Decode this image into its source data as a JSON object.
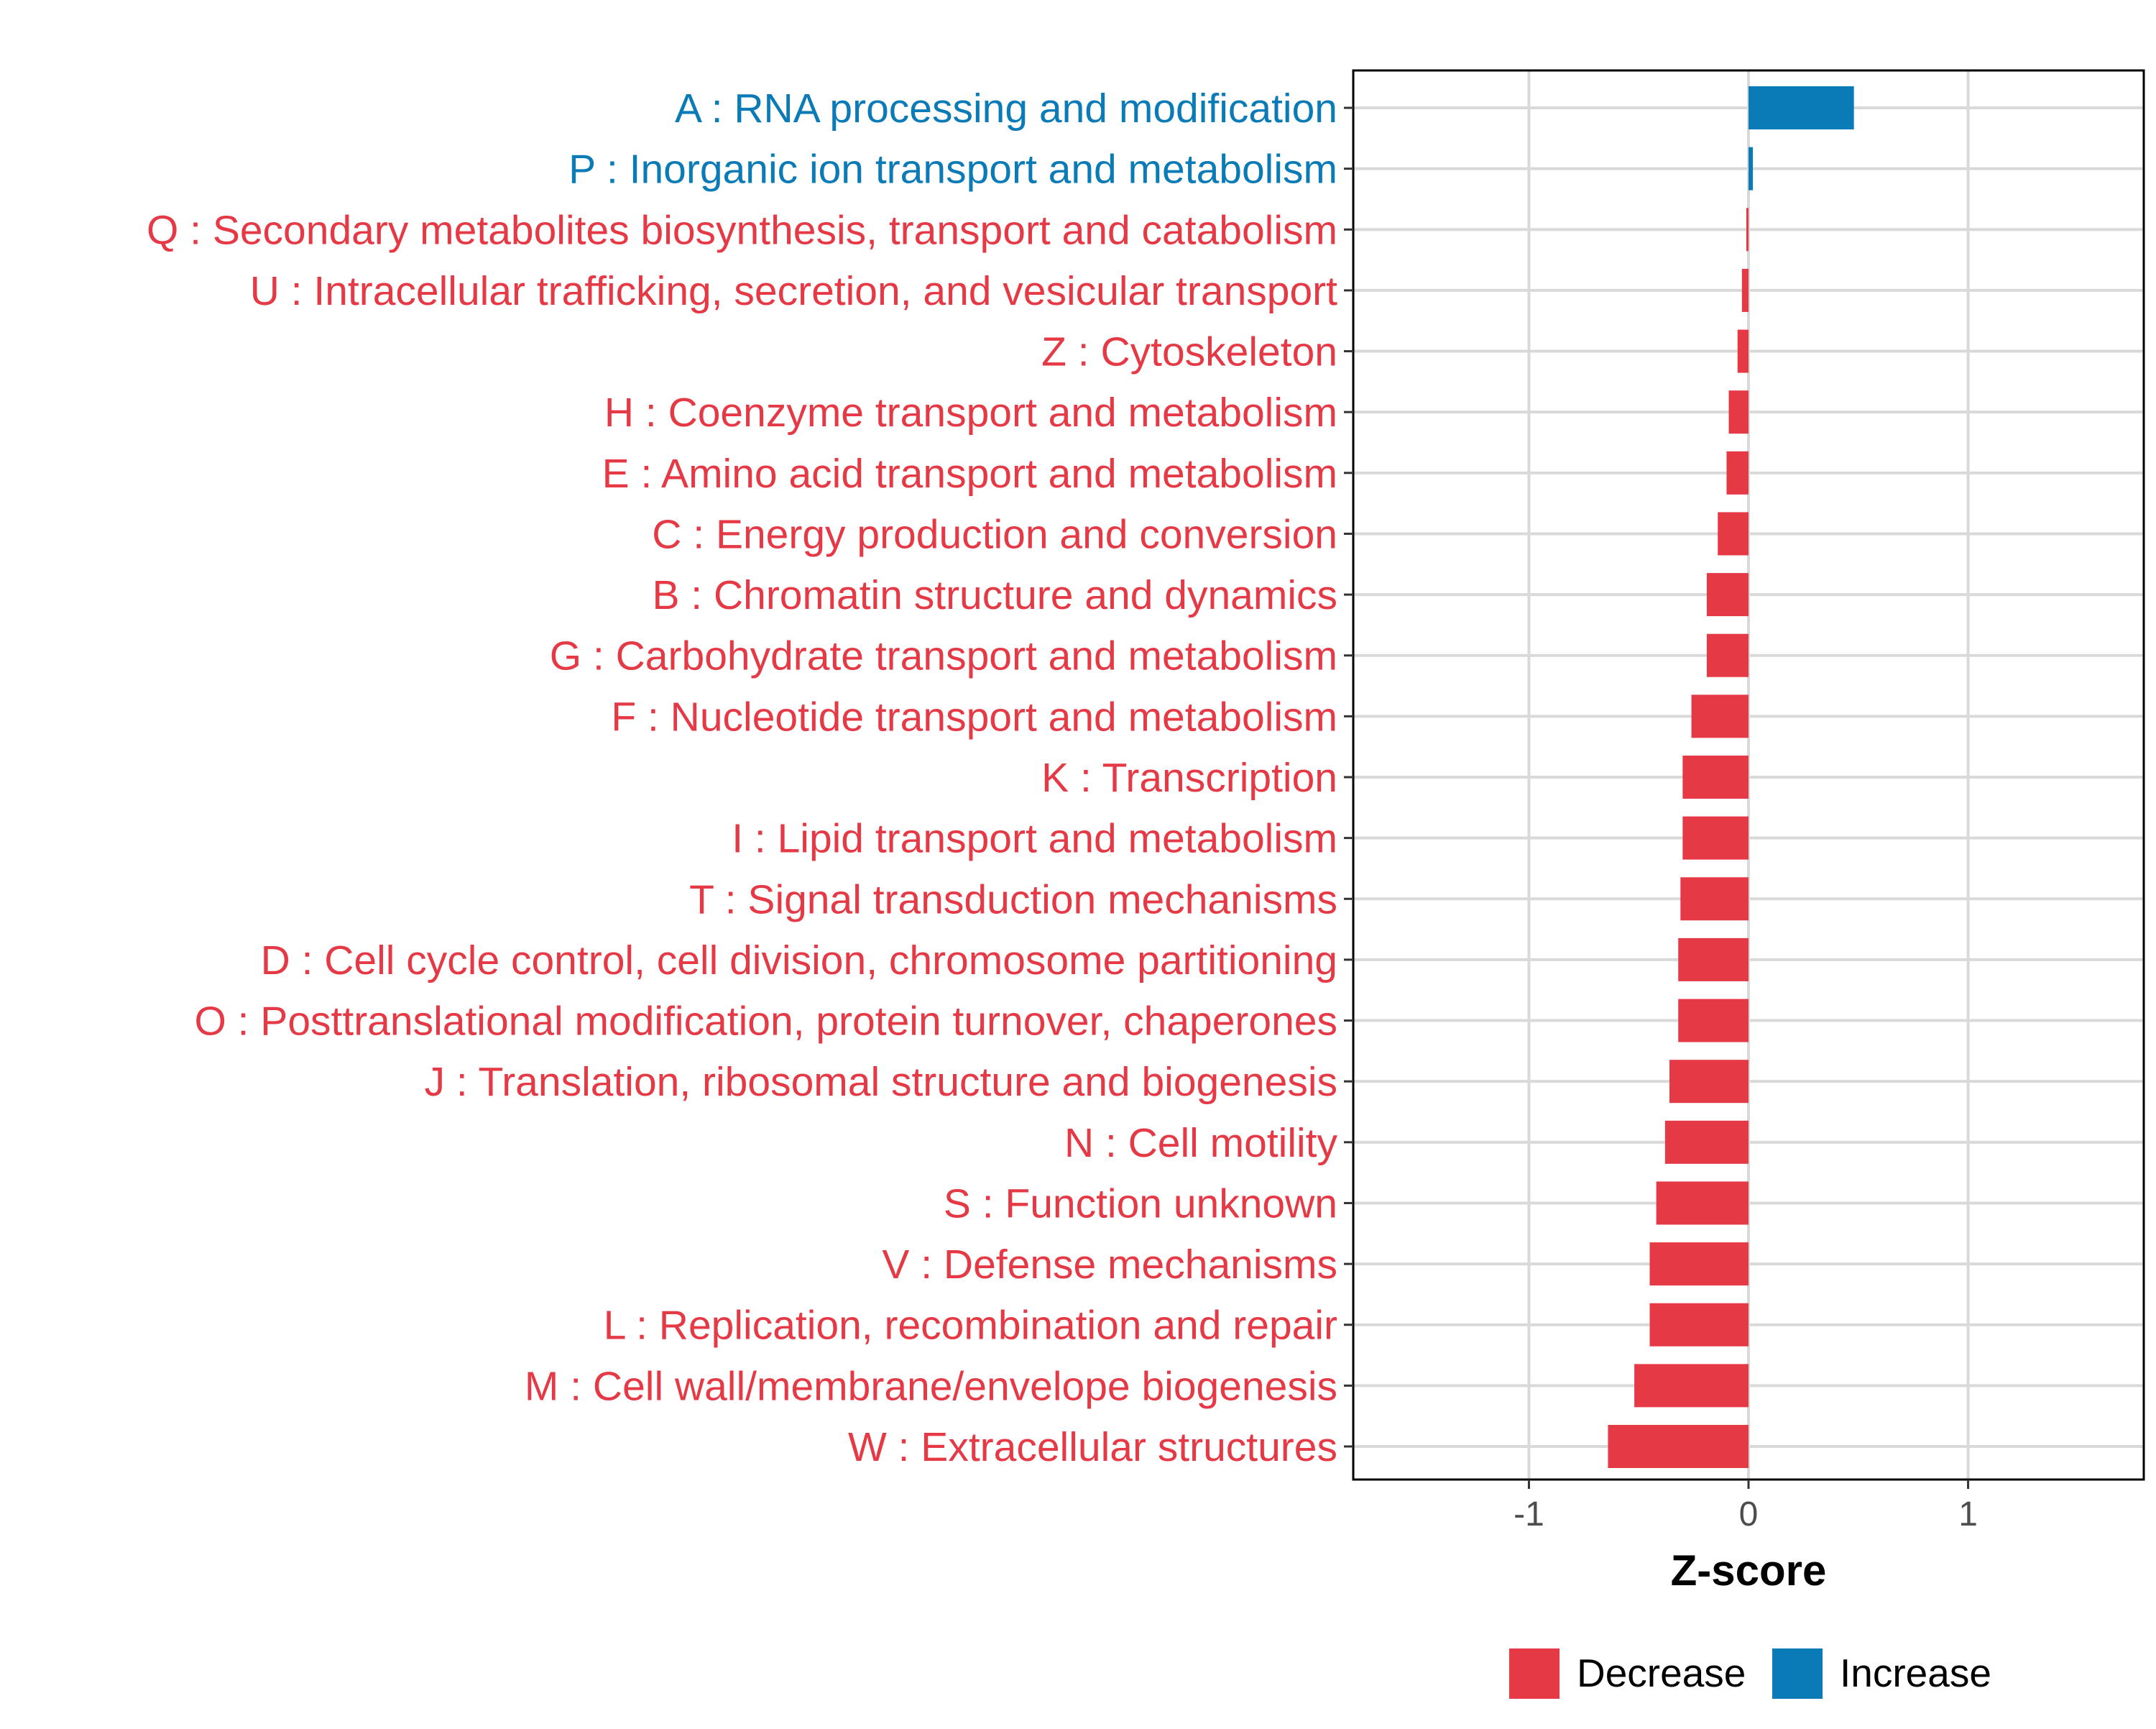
{
  "chart_data": {
    "type": "bar",
    "orientation": "horizontal",
    "xlabel": "Z-score",
    "xlim": [
      -1.8,
      1.8
    ],
    "xticks": [
      -1,
      0,
      1
    ],
    "xtick_labels": [
      "-1",
      "0",
      "1"
    ],
    "grid": true,
    "legend_position": "bottom",
    "colors": {
      "Decrease": "#e63946",
      "Increase": "#0a7bb6"
    },
    "legend": [
      {
        "label": "Decrease",
        "color": "#e63946"
      },
      {
        "label": "Increase",
        "color": "#0a7bb6"
      }
    ],
    "categories": [
      "A : RNA processing and modification",
      "P : Inorganic ion transport and metabolism",
      "Q : Secondary metabolites biosynthesis, transport and catabolism",
      "U : Intracellular trafficking, secretion, and vesicular transport",
      "Z : Cytoskeleton",
      "H : Coenzyme transport and metabolism",
      "E : Amino acid transport and metabolism",
      "C : Energy production and conversion",
      "B : Chromatin structure and dynamics",
      "G : Carbohydrate transport and metabolism",
      "F : Nucleotide transport and metabolism",
      "K : Transcription",
      "I : Lipid transport and metabolism",
      "T : Signal transduction mechanisms",
      "D : Cell cycle control, cell division, chromosome partitioning",
      "O : Posttranslational modification, protein turnover, chaperones",
      "J : Translation, ribosomal structure and biogenesis",
      "N : Cell motility",
      "S : Function unknown",
      "V : Defense mechanisms",
      "L : Replication, recombination and repair",
      "M : Cell wall/membrane/envelope biogenesis",
      "W : Extracellular structures"
    ],
    "values": [
      0.48,
      0.02,
      -0.01,
      -0.03,
      -0.05,
      -0.09,
      -0.1,
      -0.14,
      -0.19,
      -0.19,
      -0.26,
      -0.3,
      -0.3,
      -0.31,
      -0.32,
      -0.32,
      -0.36,
      -0.38,
      -0.42,
      -0.45,
      -0.45,
      -0.52,
      -0.64
    ],
    "groups": [
      "Increase",
      "Increase",
      "Decrease",
      "Decrease",
      "Decrease",
      "Decrease",
      "Decrease",
      "Decrease",
      "Decrease",
      "Decrease",
      "Decrease",
      "Decrease",
      "Decrease",
      "Decrease",
      "Decrease",
      "Decrease",
      "Decrease",
      "Decrease",
      "Decrease",
      "Decrease",
      "Decrease",
      "Decrease",
      "Decrease"
    ]
  }
}
